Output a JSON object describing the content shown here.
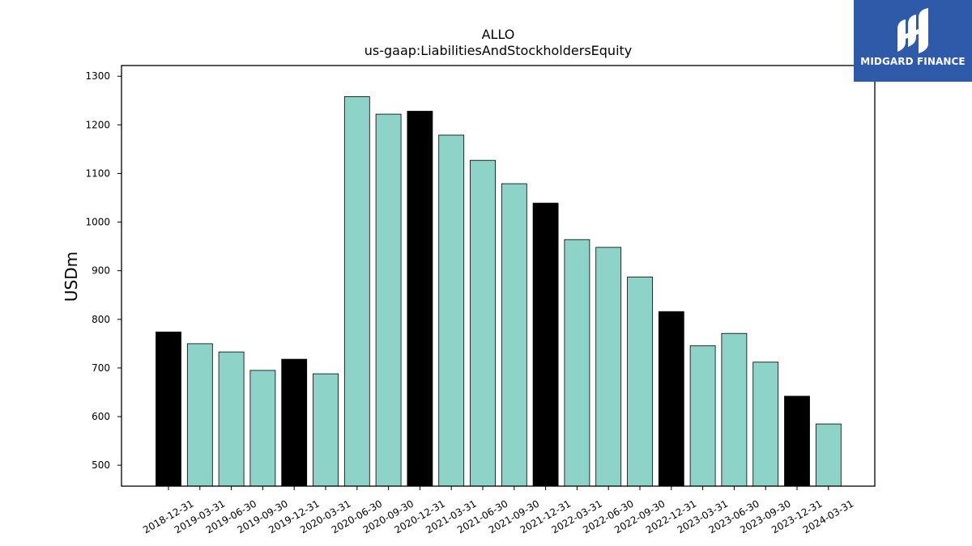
{
  "chart_data": {
    "type": "bar",
    "title": "ALLO",
    "subtitle": "us-gaap:LiabilitiesAndStockholdersEquity",
    "ylabel": "USDm",
    "xlabel": "",
    "ylim": [
      457,
      1322
    ],
    "yticks": [
      500,
      600,
      700,
      800,
      900,
      1000,
      1100,
      1200,
      1300
    ],
    "grid": false,
    "colors": {
      "quarter": "#8dd3c7",
      "year_end": "#000000",
      "edge": "#000000"
    },
    "categories": [
      "2018-12-31",
      "2019-03-31",
      "2019-06-30",
      "2019-09-30",
      "2019-12-31",
      "2020-03-31",
      "2020-06-30",
      "2020-09-30",
      "2020-12-31",
      "2021-03-31",
      "2021-06-30",
      "2021-09-30",
      "2021-12-31",
      "2022-03-31",
      "2022-06-30",
      "2022-09-30",
      "2022-12-31",
      "2023-03-31",
      "2023-06-30",
      "2023-09-30",
      "2023-12-31",
      "2024-03-31"
    ],
    "values": [
      774,
      750,
      733,
      695,
      718,
      688,
      1258,
      1222,
      1228,
      1179,
      1127,
      1079,
      1039,
      964,
      948,
      887,
      816,
      746,
      771,
      712,
      642,
      585
    ],
    "year_end": [
      true,
      false,
      false,
      false,
      true,
      false,
      false,
      false,
      true,
      false,
      false,
      false,
      true,
      false,
      false,
      false,
      true,
      false,
      false,
      false,
      true,
      false
    ]
  },
  "logo": {
    "text": "MIDGARD FINANCE"
  }
}
